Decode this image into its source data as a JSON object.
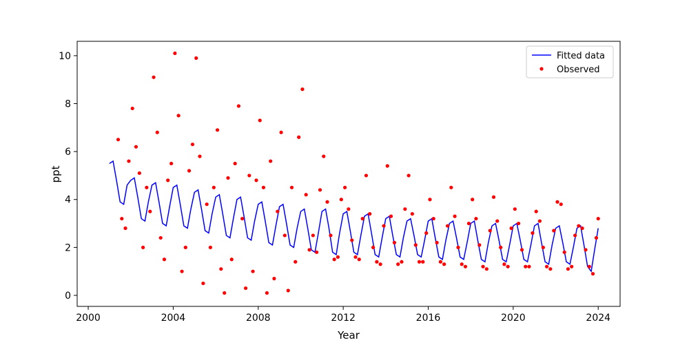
{
  "chart_data": {
    "type": "line",
    "xlabel": "Year",
    "ylabel": "ppt",
    "xlim": [
      1999.48,
      2025.03
    ],
    "ylim": [
      -0.46,
      10.6
    ],
    "xticks": [
      2000,
      2004,
      2008,
      2012,
      2016,
      2020,
      2024
    ],
    "yticks": [
      0,
      2,
      4,
      6,
      8,
      10
    ],
    "legend": "upper right",
    "series": [
      {
        "name": "Fitted data",
        "type": "line",
        "color": "blue",
        "x": [
          2001,
          2001.17,
          2001.33,
          2001.5,
          2001.67,
          2001.83,
          2002,
          2002.17,
          2002.33,
          2002.5,
          2002.67,
          2002.83,
          2003,
          2003.17,
          2003.33,
          2003.5,
          2003.67,
          2003.83,
          2004,
          2004.17,
          2004.33,
          2004.5,
          2004.67,
          2004.83,
          2005,
          2005.17,
          2005.33,
          2005.5,
          2005.67,
          2005.83,
          2006,
          2006.17,
          2006.33,
          2006.5,
          2006.67,
          2006.83,
          2007,
          2007.17,
          2007.33,
          2007.5,
          2007.67,
          2007.83,
          2008,
          2008.17,
          2008.33,
          2008.5,
          2008.67,
          2008.83,
          2009,
          2009.17,
          2009.33,
          2009.5,
          2009.67,
          2009.83,
          2010,
          2010.17,
          2010.33,
          2010.5,
          2010.67,
          2010.83,
          2011,
          2011.17,
          2011.33,
          2011.5,
          2011.67,
          2011.83,
          2012,
          2012.17,
          2012.33,
          2012.5,
          2012.67,
          2012.83,
          2013,
          2013.17,
          2013.33,
          2013.5,
          2013.67,
          2013.83,
          2014,
          2014.17,
          2014.33,
          2014.5,
          2014.67,
          2014.83,
          2015,
          2015.17,
          2015.33,
          2015.5,
          2015.67,
          2015.83,
          2016,
          2016.17,
          2016.33,
          2016.5,
          2016.67,
          2016.83,
          2017,
          2017.17,
          2017.33,
          2017.5,
          2017.67,
          2017.83,
          2018,
          2018.17,
          2018.33,
          2018.5,
          2018.67,
          2018.83,
          2019,
          2019.17,
          2019.33,
          2019.5,
          2019.67,
          2019.83,
          2020,
          2020.17,
          2020.33,
          2020.5,
          2020.67,
          2020.83,
          2021,
          2021.17,
          2021.33,
          2021.5,
          2021.67,
          2021.83,
          2022,
          2022.17,
          2022.33,
          2022.5,
          2022.67,
          2022.83,
          2023,
          2023.17,
          2023.33,
          2023.5,
          2023.67,
          2023.83,
          2024
        ],
        "values": [
          5.5,
          5.6,
          4.8,
          3.9,
          3.8,
          4.6,
          4.8,
          4.9,
          4.1,
          3.2,
          3.1,
          3.9,
          4.6,
          4.7,
          3.9,
          3.0,
          2.9,
          3.7,
          4.5,
          4.6,
          3.8,
          2.9,
          2.8,
          3.6,
          4.3,
          4.4,
          3.6,
          2.7,
          2.6,
          3.4,
          4.1,
          4.2,
          3.4,
          2.5,
          2.4,
          3.2,
          4.0,
          4.1,
          3.3,
          2.4,
          2.3,
          3.1,
          3.8,
          3.9,
          3.1,
          2.2,
          2.1,
          2.9,
          3.7,
          3.8,
          3.0,
          2.1,
          2.0,
          2.8,
          3.5,
          3.6,
          2.8,
          1.9,
          1.8,
          2.6,
          3.5,
          3.6,
          2.8,
          1.8,
          1.7,
          2.6,
          3.4,
          3.5,
          2.7,
          1.8,
          1.7,
          2.5,
          3.3,
          3.4,
          2.6,
          1.7,
          1.6,
          2.4,
          3.2,
          3.3,
          2.5,
          1.7,
          1.6,
          2.4,
          3.1,
          3.2,
          2.5,
          1.7,
          1.6,
          2.3,
          3.1,
          3.2,
          2.4,
          1.6,
          1.5,
          2.3,
          3.0,
          3.1,
          2.4,
          1.6,
          1.5,
          2.2,
          3.0,
          3.1,
          2.3,
          1.5,
          1.4,
          2.2,
          2.9,
          3.0,
          2.3,
          1.5,
          1.4,
          2.1,
          2.9,
          3.0,
          2.3,
          1.5,
          1.4,
          2.1,
          2.9,
          3.0,
          2.2,
          1.4,
          1.3,
          2.1,
          2.8,
          2.9,
          2.2,
          1.4,
          1.3,
          2.0,
          2.8,
          2.9,
          2.1,
          1.2,
          1.0,
          1.9,
          2.8
        ]
      },
      {
        "name": "Observed",
        "type": "scatter",
        "color": "red",
        "x": [
          2001.41,
          2001.58,
          2001.75,
          2001.91,
          2002.08,
          2002.25,
          2002.41,
          2002.58,
          2002.75,
          2002.91,
          2003.08,
          2003.25,
          2003.41,
          2003.58,
          2003.75,
          2003.91,
          2004.08,
          2004.25,
          2004.41,
          2004.58,
          2004.75,
          2004.91,
          2005.08,
          2005.25,
          2005.41,
          2005.58,
          2005.75,
          2005.91,
          2006.08,
          2006.25,
          2006.41,
          2006.58,
          2006.75,
          2006.91,
          2007.08,
          2007.25,
          2007.41,
          2007.58,
          2007.75,
          2007.91,
          2008.08,
          2008.25,
          2008.41,
          2008.58,
          2008.75,
          2008.91,
          2009.08,
          2009.25,
          2009.41,
          2009.58,
          2009.75,
          2009.91,
          2010.08,
          2010.25,
          2010.41,
          2010.58,
          2010.75,
          2010.91,
          2011.08,
          2011.25,
          2011.41,
          2011.58,
          2011.75,
          2011.91,
          2012.08,
          2012.25,
          2012.41,
          2012.58,
          2012.75,
          2012.91,
          2013.08,
          2013.25,
          2013.41,
          2013.58,
          2013.75,
          2013.91,
          2014.08,
          2014.25,
          2014.41,
          2014.58,
          2014.75,
          2014.91,
          2015.08,
          2015.25,
          2015.41,
          2015.58,
          2015.75,
          2015.91,
          2016.08,
          2016.25,
          2016.41,
          2016.58,
          2016.75,
          2016.91,
          2017.08,
          2017.25,
          2017.41,
          2017.58,
          2017.75,
          2017.91,
          2018.08,
          2018.25,
          2018.41,
          2018.58,
          2018.75,
          2018.91,
          2019.08,
          2019.25,
          2019.41,
          2019.58,
          2019.75,
          2019.91,
          2020.08,
          2020.25,
          2020.41,
          2020.58,
          2020.75,
          2020.91,
          2021.08,
          2021.25,
          2021.41,
          2021.58,
          2021.75,
          2021.91,
          2022.08,
          2022.25,
          2022.41,
          2022.58,
          2022.75,
          2022.91,
          2023.08,
          2023.25,
          2023.41,
          2023.58,
          2023.75,
          2023.91,
          2024
        ],
        "values": [
          6.5,
          3.2,
          2.8,
          5.6,
          7.8,
          6.2,
          5.1,
          2.0,
          4.5,
          3.5,
          9.1,
          6.8,
          2.4,
          1.5,
          4.8,
          5.5,
          10.1,
          7.5,
          1.0,
          2.0,
          5.2,
          6.3,
          9.9,
          5.8,
          0.5,
          3.8,
          2.0,
          4.5,
          6.9,
          1.1,
          0.1,
          4.9,
          1.5,
          5.5,
          7.9,
          3.2,
          0.3,
          5.0,
          1.0,
          4.8,
          7.3,
          4.5,
          0.1,
          5.6,
          0.7,
          3.5,
          6.8,
          2.5,
          0.2,
          4.5,
          1.4,
          6.6,
          8.6,
          4.2,
          1.9,
          2.5,
          1.8,
          4.4,
          5.8,
          3.9,
          2.5,
          1.5,
          1.6,
          4.0,
          4.5,
          3.6,
          2.3,
          1.6,
          1.5,
          3.2,
          5.0,
          3.4,
          2.0,
          1.4,
          1.3,
          2.9,
          5.4,
          3.3,
          2.2,
          1.3,
          1.4,
          3.6,
          5.0,
          3.4,
          2.1,
          1.4,
          1.4,
          2.6,
          4.0,
          3.2,
          2.2,
          1.4,
          1.3,
          2.9,
          4.5,
          3.3,
          2.0,
          1.3,
          1.2,
          3.0,
          4.0,
          3.2,
          2.1,
          1.2,
          1.1,
          2.7,
          4.1,
          3.1,
          2.0,
          1.3,
          1.2,
          2.8,
          3.6,
          3.0,
          1.9,
          1.2,
          1.2,
          2.6,
          3.5,
          3.1,
          2.0,
          1.2,
          1.1,
          2.7,
          3.9,
          3.8,
          1.8,
          1.1,
          1.2,
          2.5,
          2.9,
          2.8,
          1.9,
          1.2,
          0.9,
          2.4,
          3.2
        ]
      }
    ]
  }
}
